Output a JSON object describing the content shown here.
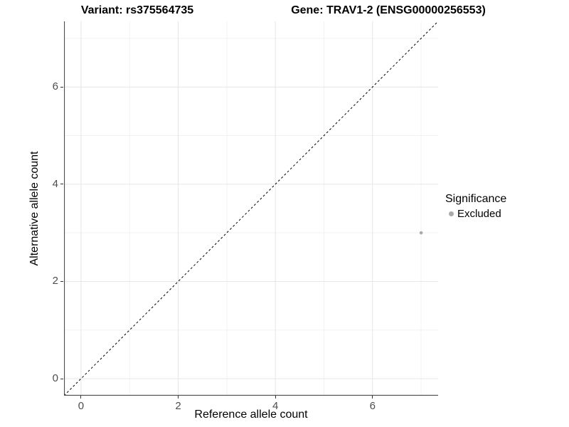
{
  "titles": {
    "variant": "Variant: rs375564735",
    "gene": "Gene: TRAV1-2 (ENSG00000256553)"
  },
  "chart_data": {
    "type": "scatter",
    "xlabel": "Reference allele count",
    "ylabel": "Alternative allele count",
    "x_ticks": [
      0,
      2,
      4,
      6
    ],
    "y_ticks": [
      0,
      2,
      4,
      6
    ],
    "x_minor_ticks": [
      1,
      3,
      5,
      7
    ],
    "y_minor_ticks": [
      1,
      3,
      5,
      7
    ],
    "xlim": [
      -0.35,
      7.35
    ],
    "ylim": [
      -0.35,
      7.35
    ],
    "grid": true,
    "identity_line": {
      "style": "dashed",
      "from": -0.35,
      "to": 7.35
    },
    "series": [
      {
        "name": "Excluded",
        "points": [
          {
            "x": 7,
            "y": 3
          }
        ]
      }
    ],
    "legend": {
      "title": "Significance",
      "position": "right",
      "items": [
        {
          "label": "Excluded",
          "color": "#aaaaaa"
        }
      ]
    }
  },
  "colors": {
    "point": "#aaaaaa",
    "identity_line": "#000000",
    "grid_major": "#e6e6e6",
    "grid_minor": "#f2f2f2",
    "axis_line": "#4d4d4d",
    "tick_mark": "#333333",
    "tick_label": "#4d4d4d",
    "background": "#ffffff"
  }
}
